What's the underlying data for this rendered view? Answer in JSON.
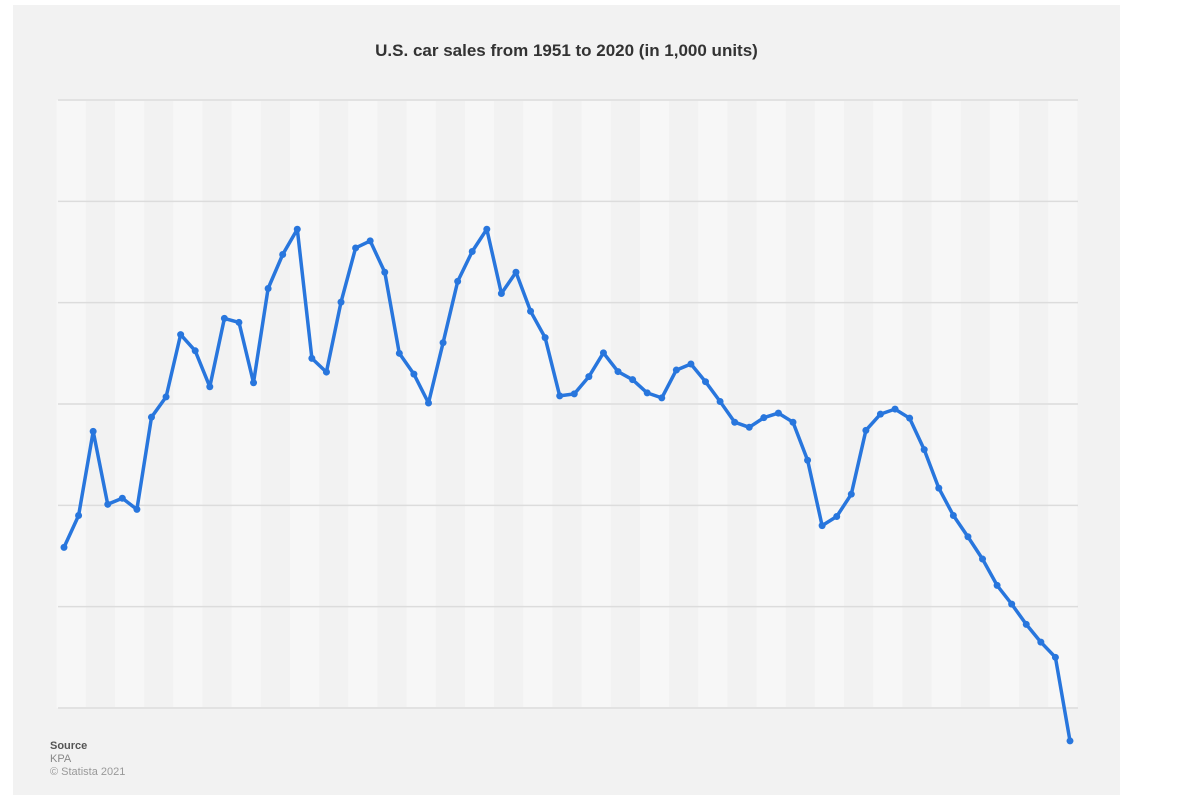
{
  "chart_data": {
    "type": "line",
    "title": "U.S. car sales from 1951 to 2020 (in 1,000 units)",
    "xlabel": "",
    "ylabel": "",
    "ylim": [
      2000,
      14000
    ],
    "yticks": [
      2000,
      4000,
      6000,
      8000,
      10000,
      12000,
      14000
    ],
    "ytick_labels_visible": false,
    "grid": true,
    "legend": null,
    "line_color": "#2876dd",
    "x": [
      1951,
      1952,
      1953,
      1954,
      1955,
      1956,
      1957,
      1958,
      1959,
      1960,
      1961,
      1962,
      1963,
      1964,
      1965,
      1966,
      1967,
      1968,
      1969,
      1970,
      1971,
      1972,
      1973,
      1974,
      1975,
      1976,
      1977,
      1978,
      1979,
      1980,
      1981,
      1982,
      1983,
      1984,
      1985,
      1986,
      1987,
      1988,
      1989,
      1990,
      1991,
      1992,
      1993,
      1994,
      1995,
      1996,
      1997,
      1998,
      1999,
      2000,
      2001,
      2002,
      2003,
      2004,
      2005,
      2006,
      2007,
      2008,
      2009,
      2010,
      2011,
      2012,
      2013,
      2014,
      2015,
      2016,
      2017,
      2018,
      2019,
      2020
    ],
    "series": [
      {
        "name": "Car sales (1,000 units)",
        "values": [
          5170,
          5800,
          7460,
          6020,
          6140,
          5920,
          7740,
          8140,
          9370,
          9050,
          8340,
          9690,
          9610,
          8420,
          10280,
          10950,
          11450,
          8900,
          8630,
          10010,
          11080,
          11220,
          10600,
          9000,
          8590,
          8020,
          9210,
          10420,
          11010,
          11450,
          10180,
          10600,
          9830,
          9310,
          8160,
          8200,
          8540,
          9010,
          8640,
          8480,
          8220,
          8120,
          8670,
          8790,
          8440,
          8050,
          7640,
          7540,
          7730,
          7820,
          7640,
          6890,
          5600,
          5780,
          6220,
          7480,
          7800,
          7900,
          7720,
          7100,
          6340,
          5800,
          5380,
          4940,
          4420,
          4050,
          3650,
          3300,
          3000,
          1350
        ]
      }
    ]
  },
  "footer": {
    "source_label": "Source",
    "source_name": "KPA",
    "copyright": "© Statista 2021"
  }
}
